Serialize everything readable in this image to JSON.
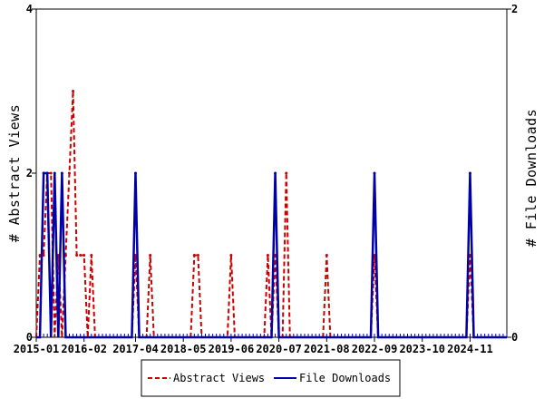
{
  "chart_data": {
    "type": "line",
    "title": "",
    "xlabel": "",
    "ylabel_left": "# Abstract Views",
    "ylabel_right": "# File Downloads",
    "ylim_left": [
      0,
      4
    ],
    "ylim_right": [
      0,
      2
    ],
    "yticks_left": [
      "0",
      "2",
      "4"
    ],
    "yticks_right": [
      "0",
      "2"
    ],
    "x_start": "2015-01",
    "x_end": "2025-09",
    "xticks": [
      "2015-01",
      "2016-02",
      "2017-04",
      "2018-05",
      "2019-06",
      "2020-07",
      "2021-08",
      "2022-09",
      "2023-10",
      "2024-11"
    ],
    "grid": false,
    "legend_position": "bottom",
    "series": [
      {
        "name": "Abstract Views",
        "axis": "left",
        "color": "#cc0000",
        "style": "dashed",
        "x": [
          "2015-01",
          "2015-02",
          "2015-03",
          "2015-04",
          "2015-05",
          "2015-06",
          "2015-07",
          "2015-08",
          "2015-09",
          "2015-10",
          "2015-11",
          "2015-12",
          "2016-01",
          "2016-02",
          "2016-03",
          "2016-04",
          "2016-05",
          "2016-06",
          "2016-07",
          "2017-03",
          "2017-04",
          "2017-05",
          "2017-06",
          "2017-07",
          "2017-08",
          "2017-09",
          "2018-07",
          "2018-08",
          "2018-09",
          "2018-10",
          "2019-05",
          "2019-06",
          "2019-07",
          "2020-03",
          "2020-04",
          "2020-05",
          "2020-06",
          "2020-07",
          "2020-08",
          "2020-09",
          "2020-10",
          "2021-07",
          "2021-08",
          "2021-09",
          "2022-08",
          "2022-09",
          "2022-10",
          "2024-10",
          "2024-11",
          "2024-12"
        ],
        "y": [
          0,
          1,
          1,
          2,
          2,
          0,
          1,
          0,
          1,
          2,
          3,
          1,
          1,
          1,
          0,
          1,
          0,
          0,
          0,
          0,
          1,
          0,
          0,
          0,
          1,
          0,
          0,
          1,
          1,
          0,
          0,
          1,
          0,
          0,
          1,
          0,
          1,
          0,
          0,
          2,
          0,
          0,
          1,
          0,
          0,
          1,
          0,
          0,
          1,
          0
        ]
      },
      {
        "name": "File Downloads",
        "axis": "right",
        "color": "#0000aa",
        "style": "solid",
        "x": [
          "2015-01",
          "2015-02",
          "2015-03",
          "2015-04",
          "2015-05",
          "2015-06",
          "2015-07",
          "2015-08",
          "2015-09",
          "2015-10",
          "2017-03",
          "2017-04",
          "2017-05",
          "2020-05",
          "2020-06",
          "2020-07",
          "2022-08",
          "2022-09",
          "2022-10",
          "2024-10",
          "2024-11",
          "2024-12"
        ],
        "y": [
          0,
          0,
          1,
          1,
          0,
          1,
          0,
          1,
          0,
          0,
          0,
          1,
          0,
          0,
          1,
          0,
          0,
          1,
          0,
          0,
          1,
          0
        ]
      }
    ]
  }
}
